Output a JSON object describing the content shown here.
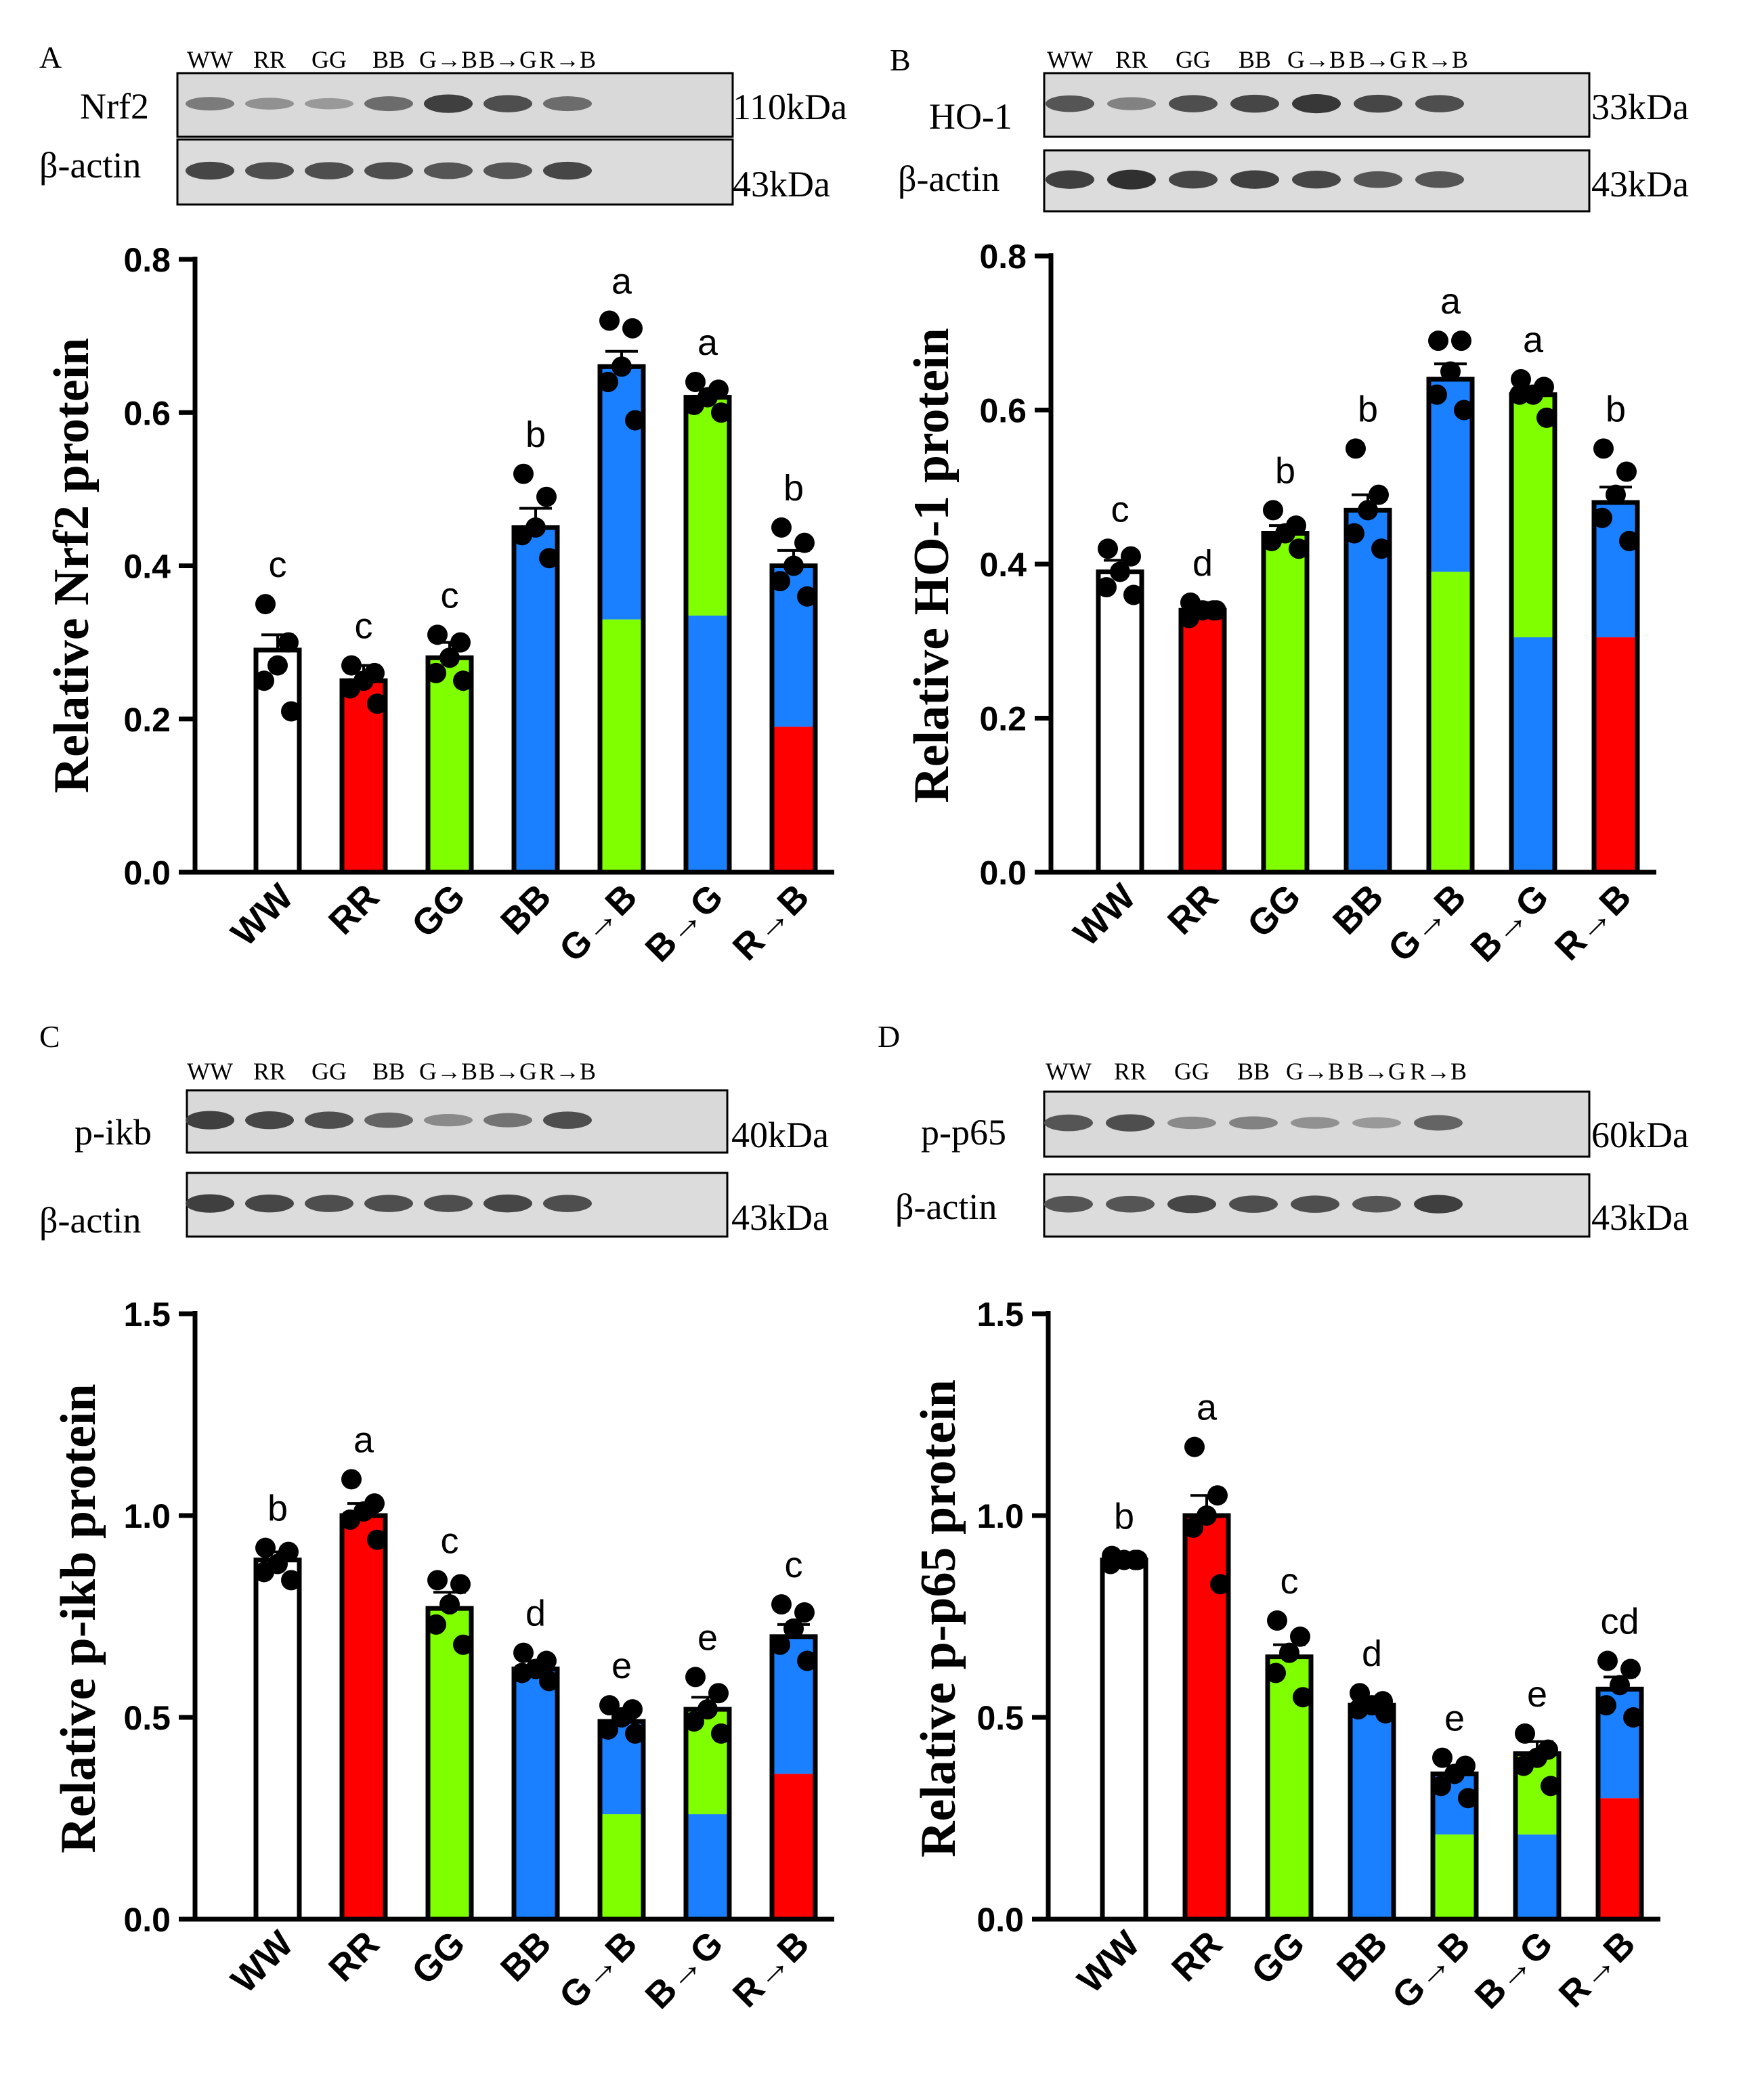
{
  "colors": {
    "white": "#ffffff",
    "red": "#ff0000",
    "green": "#80ff00",
    "blue": "#1a80ff",
    "black": "#000000"
  },
  "groups": [
    "WW",
    "RR",
    "GG",
    "BB",
    "G→B",
    "B→G",
    "R→B"
  ],
  "bar_colors": [
    [
      "white"
    ],
    [
      "red"
    ],
    [
      "green"
    ],
    [
      "blue"
    ],
    [
      "green",
      "blue"
    ],
    [
      "blue",
      "green"
    ],
    [
      "red",
      "blue"
    ]
  ],
  "chart_data": [
    {
      "type": "bar",
      "panel": "A",
      "target_protein": "Nrf2",
      "target_kda": "110kDa",
      "loading_protein": "β-actin",
      "loading_kda": "43kDa",
      "ylabel": "Relative Nrf2 protein",
      "ylim": [
        0,
        0.8
      ],
      "yticks": [
        0.0,
        0.2,
        0.4,
        0.6,
        0.8
      ],
      "ytick_labels": [
        "0.0",
        "0.2",
        "0.4",
        "0.6",
        "0.8"
      ],
      "categories": [
        "WW",
        "RR",
        "GG",
        "BB",
        "G→B",
        "B→G",
        "R→B"
      ],
      "values": [
        0.29,
        0.25,
        0.28,
        0.45,
        0.66,
        0.62,
        0.4
      ],
      "errors": [
        0.02,
        0.02,
        0.02,
        0.025,
        0.02,
        0.01,
        0.02
      ],
      "segment_boundaries": [
        null,
        null,
        null,
        null,
        0.33,
        0.335,
        0.19
      ],
      "significance": [
        "c",
        "c",
        "c",
        "b",
        "a",
        "a",
        "b"
      ],
      "points": [
        [
          0.35,
          0.3,
          0.27,
          0.25,
          0.21
        ],
        [
          0.27,
          0.26,
          0.25,
          0.24,
          0.22
        ],
        [
          0.31,
          0.3,
          0.28,
          0.26,
          0.25
        ],
        [
          0.52,
          0.49,
          0.45,
          0.44,
          0.41
        ],
        [
          0.72,
          0.71,
          0.66,
          0.64,
          0.59
        ],
        [
          0.64,
          0.63,
          0.62,
          0.61,
          0.6
        ],
        [
          0.45,
          0.43,
          0.4,
          0.38,
          0.36
        ]
      ]
    },
    {
      "type": "bar",
      "panel": "B",
      "target_protein": "HO-1",
      "target_kda": "33kDa",
      "loading_protein": "β-actin",
      "loading_kda": "43kDa",
      "ylabel": "Relative HO-1 protein",
      "ylim": [
        0,
        0.8
      ],
      "yticks": [
        0.0,
        0.2,
        0.4,
        0.6,
        0.8
      ],
      "ytick_labels": [
        "0.0",
        "0.2",
        "0.4",
        "0.6",
        "0.8"
      ],
      "categories": [
        "WW",
        "RR",
        "GG",
        "BB",
        "G→B",
        "B→G",
        "R→B"
      ],
      "values": [
        0.39,
        0.34,
        0.44,
        0.47,
        0.64,
        0.62,
        0.48
      ],
      "errors": [
        0.015,
        0.01,
        0.01,
        0.02,
        0.02,
        0.01,
        0.02
      ],
      "segment_boundaries": [
        null,
        null,
        null,
        null,
        0.39,
        0.305,
        0.305
      ],
      "significance": [
        "c",
        "d",
        "b",
        "b",
        "a",
        "a",
        "b"
      ],
      "points": [
        [
          0.42,
          0.41,
          0.39,
          0.37,
          0.36
        ],
        [
          0.35,
          0.34,
          0.34,
          0.33,
          0.34
        ],
        [
          0.47,
          0.45,
          0.44,
          0.43,
          0.42
        ],
        [
          0.55,
          0.49,
          0.47,
          0.44,
          0.42
        ],
        [
          0.69,
          0.69,
          0.65,
          0.62,
          0.6
        ],
        [
          0.64,
          0.63,
          0.62,
          0.62,
          0.59
        ],
        [
          0.55,
          0.52,
          0.49,
          0.46,
          0.43
        ]
      ]
    },
    {
      "type": "bar",
      "panel": "C",
      "target_protein": "p-ikb",
      "target_kda": "40kDa",
      "loading_protein": "β-actin",
      "loading_kda": "43kDa",
      "ylabel": "Relative p-ikb protein",
      "ylim": [
        0,
        1.5
      ],
      "yticks": [
        0.0,
        0.5,
        1.0,
        1.5
      ],
      "ytick_labels": [
        "0.0",
        "0.5",
        "1.0",
        "1.5"
      ],
      "categories": [
        "WW",
        "RR",
        "GG",
        "BB",
        "G→B",
        "B→G",
        "R→B"
      ],
      "values": [
        0.89,
        1.0,
        0.77,
        0.62,
        0.49,
        0.52,
        0.7
      ],
      "errors": [
        0.02,
        0.03,
        0.04,
        0.02,
        0.02,
        0.03,
        0.03
      ],
      "segment_boundaries": [
        null,
        null,
        null,
        null,
        0.26,
        0.26,
        0.36
      ],
      "significance": [
        "b",
        "a",
        "c",
        "d",
        "e",
        "e",
        "c"
      ],
      "points": [
        [
          0.92,
          0.91,
          0.88,
          0.86,
          0.84
        ],
        [
          1.09,
          1.03,
          1.01,
          0.99,
          0.94
        ],
        [
          0.84,
          0.83,
          0.78,
          0.73,
          0.68
        ],
        [
          0.66,
          0.64,
          0.62,
          0.61,
          0.59
        ],
        [
          0.53,
          0.52,
          0.5,
          0.47,
          0.46
        ],
        [
          0.6,
          0.56,
          0.52,
          0.49,
          0.46
        ],
        [
          0.78,
          0.76,
          0.72,
          0.68,
          0.64
        ]
      ]
    },
    {
      "type": "bar",
      "panel": "D",
      "target_protein": "p-p65",
      "target_kda": "60kDa",
      "loading_protein": "β-actin",
      "loading_kda": "43kDa",
      "ylabel": "Relative p-p65 protein",
      "ylim": [
        0,
        1.5
      ],
      "yticks": [
        0.0,
        0.5,
        1.0,
        1.5
      ],
      "ytick_labels": [
        "0.0",
        "0.5",
        "1.0",
        "1.5"
      ],
      "categories": [
        "WW",
        "RR",
        "GG",
        "BB",
        "G→B",
        "B→G",
        "R→B"
      ],
      "values": [
        0.89,
        1.0,
        0.65,
        0.53,
        0.36,
        0.41,
        0.57
      ],
      "errors": [
        0.01,
        0.05,
        0.03,
        0.015,
        0.02,
        0.03,
        0.03
      ],
      "segment_boundaries": [
        null,
        null,
        null,
        null,
        0.21,
        0.21,
        0.3
      ],
      "significance": [
        "b",
        "a",
        "c",
        "d",
        "e",
        "e",
        "cd"
      ],
      "points": [
        [
          0.9,
          0.89,
          0.89,
          0.88,
          0.89
        ],
        [
          1.17,
          1.05,
          1.0,
          0.97,
          0.83
        ],
        [
          0.74,
          0.7,
          0.66,
          0.61,
          0.55
        ],
        [
          0.56,
          0.54,
          0.53,
          0.52,
          0.51
        ],
        [
          0.4,
          0.38,
          0.36,
          0.33,
          0.3
        ],
        [
          0.46,
          0.42,
          0.4,
          0.38,
          0.33
        ],
        [
          0.64,
          0.62,
          0.58,
          0.53,
          0.5
        ]
      ]
    }
  ]
}
